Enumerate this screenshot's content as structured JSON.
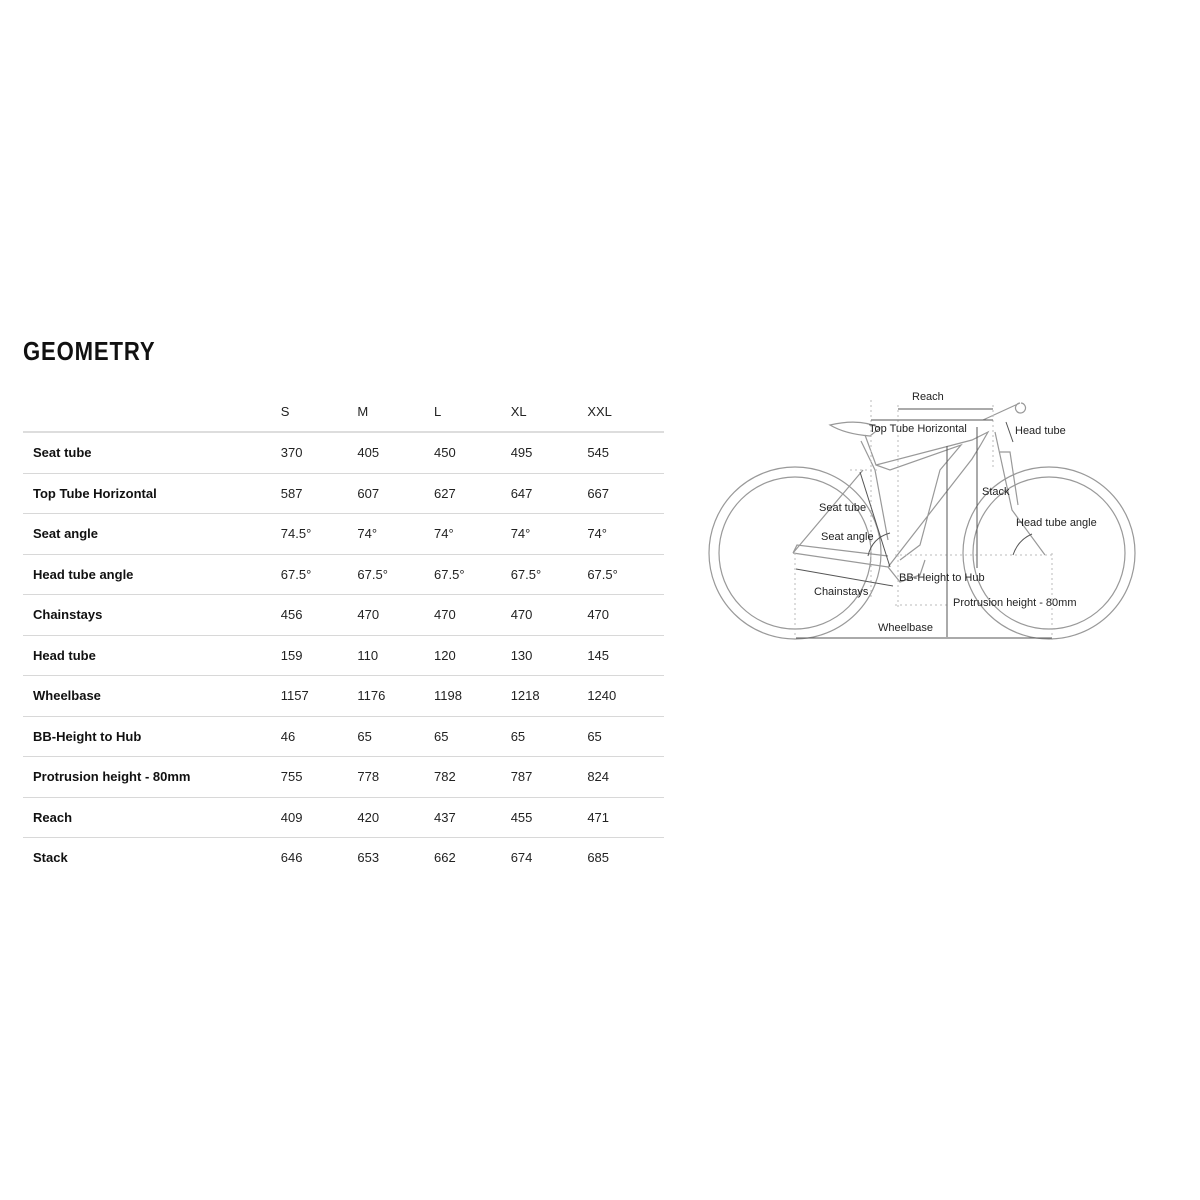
{
  "title": "GEOMETRY",
  "table": {
    "sizes": [
      "S",
      "M",
      "L",
      "XL",
      "XXL"
    ],
    "rows": [
      {
        "label": "Seat tube",
        "values": [
          "370",
          "405",
          "450",
          "495",
          "545"
        ]
      },
      {
        "label": "Top Tube Horizontal",
        "values": [
          "587",
          "607",
          "627",
          "647",
          "667"
        ]
      },
      {
        "label": "Seat angle",
        "values": [
          "74.5°",
          "74°",
          "74°",
          "74°",
          "74°"
        ]
      },
      {
        "label": "Head tube angle",
        "values": [
          "67.5°",
          "67.5°",
          "67.5°",
          "67.5°",
          "67.5°"
        ]
      },
      {
        "label": "Chainstays",
        "values": [
          "456",
          "470",
          "470",
          "470",
          "470"
        ]
      },
      {
        "label": "Head tube",
        "values": [
          "159",
          "110",
          "120",
          "130",
          "145"
        ]
      },
      {
        "label": "Wheelbase",
        "values": [
          "1157",
          "1176",
          "1198",
          "1218",
          "1240"
        ]
      },
      {
        "label": "BB-Height to Hub",
        "values": [
          "46",
          "65",
          "65",
          "65",
          "65"
        ]
      },
      {
        "label": "Protrusion height - 80mm",
        "values": [
          "755",
          "778",
          "782",
          "787",
          "824"
        ]
      },
      {
        "label": "Reach",
        "values": [
          "409",
          "420",
          "437",
          "455",
          "471"
        ]
      },
      {
        "label": "Stack",
        "values": [
          "646",
          "653",
          "662",
          "674",
          "685"
        ]
      }
    ]
  },
  "diagram": {
    "labels": {
      "reach": "Reach",
      "top_tube": "Top Tube Horizontal",
      "head_tube": "Head tube",
      "stack": "Stack",
      "seat_tube": "Seat tube",
      "seat_angle": "Seat angle",
      "head_tube_angle": "Head tube angle",
      "bb_height": "BB-Height to Hub",
      "chainstays": "Chainstays",
      "protrusion": "Protrusion height - 80mm",
      "wheelbase": "Wheelbase"
    }
  }
}
